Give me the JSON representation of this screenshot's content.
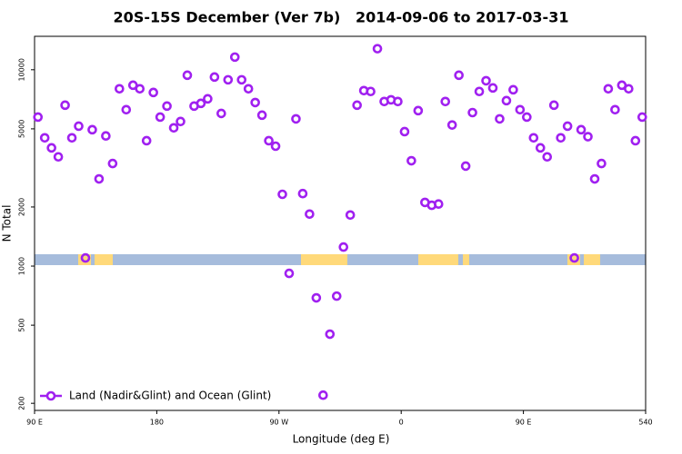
{
  "chart_data": {
    "type": "scatter",
    "title": "20S-15S December (Ver 7b)   2014-09-06 to 2017-03-31",
    "xlabel": "Longitude (deg E)",
    "ylabel": "N Total",
    "log_y": true,
    "legend_position": "lower left",
    "x": [
      92.5,
      97.5,
      102.5,
      107.5,
      112.5,
      117.5,
      122.5,
      127.5,
      132.5,
      137.5,
      142.5,
      147.5,
      152.5,
      157.5,
      162.5,
      167.5,
      172.5,
      177.5,
      182.5,
      187.5,
      192.5,
      197.5,
      202.5,
      207.5,
      212.5,
      217.5,
      222.5,
      227.5,
      232.5,
      237.5,
      242.5,
      247.5,
      252.5,
      257.5,
      262.5,
      267.5,
      272.5,
      277.5,
      282.5,
      287.5,
      292.5,
      297.5,
      302.5,
      307.5,
      312.5,
      317.5,
      322.5,
      327.5,
      332.5,
      337.5,
      342.5,
      347.5,
      352.5,
      357.5,
      362.5,
      367.5,
      372.5,
      377.5,
      382.5,
      387.5,
      392.5,
      397.5,
      402.5,
      407.5,
      412.5,
      417.5,
      422.5,
      427.5,
      432.5,
      437.5,
      442.5,
      447.5,
      452.5,
      457.5,
      462.5,
      467.5,
      472.5,
      477.5,
      482.5,
      487.5,
      492.5,
      497.5,
      502.5,
      507.5,
      512.5,
      517.5,
      522.5,
      527.5,
      532.5,
      537.5
    ],
    "series": [
      {
        "name": "Land (Nadir&Glint) and Ocean (Glint)",
        "color": "#a020f0",
        "values": [
          5740,
          4500,
          4000,
          3600,
          6600,
          4500,
          5160,
          1100,
          4950,
          2780,
          4600,
          3330,
          8000,
          6260,
          8340,
          8000,
          4350,
          7660,
          5740,
          6530,
          5060,
          5450,
          9380,
          6530,
          6740,
          7110,
          9180,
          5990,
          8890,
          11600,
          8890,
          8000,
          6810,
          5870,
          4350,
          4080,
          2320,
          918,
          5620,
          2340,
          1840,
          689,
          220,
          450,
          703,
          1250,
          1820,
          6600,
          7830,
          7750,
          12800,
          6890,
          7030,
          6890,
          4840,
          3440,
          6190,
          2110,
          2040,
          2070,
          6890,
          5230,
          9380,
          3230,
          6050,
          7750,
          8790,
          8080,
          5620,
          6960,
          7910,
          6260,
          5740,
          4500,
          4000,
          3600,
          6600,
          4500,
          5160,
          1100,
          4950,
          4560,
          2780,
          3330,
          8000,
          6260,
          8340,
          8000,
          4350,
          5740
        ]
      }
    ],
    "xlim": [
      90,
      540
    ],
    "xticks": [
      {
        "value": 90,
        "label": "90 E"
      },
      180,
      {
        "value": 270,
        "label": "90 W"
      },
      {
        "value": 360,
        "label": "0"
      },
      {
        "value": 450,
        "label": "90 E"
      },
      540
    ],
    "ylim": [
      184,
      14800
    ],
    "yticks": [
      200,
      500,
      1000,
      2000,
      5000,
      10000
    ]
  }
}
